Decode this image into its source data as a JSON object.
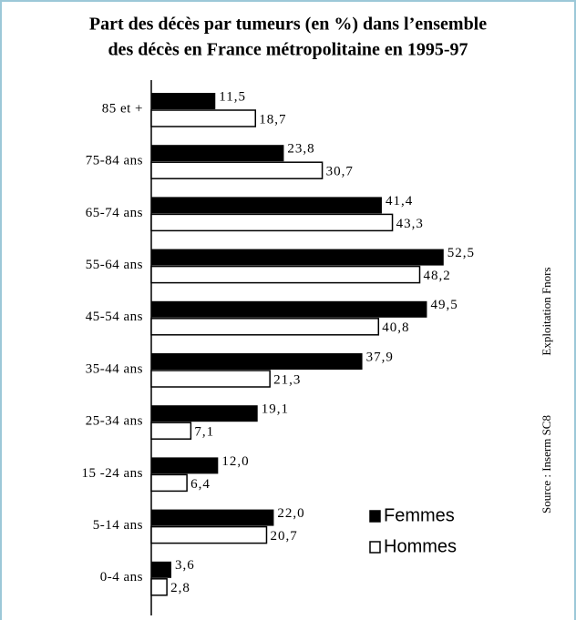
{
  "chart_data": {
    "type": "bar",
    "orientation": "horizontal",
    "title": [
      "Part des décès par tumeurs (en %) dans l’ensemble",
      "des décès en France métropolitaine en 1995-97"
    ],
    "categories": [
      "85 et +",
      "75-84 ans",
      "65-74 ans",
      "55-64 ans",
      "45-54 ans",
      "35-44 ans",
      "25-34 ans",
      "15 -24 ans",
      "5-14 ans",
      "0-4 ans"
    ],
    "series": [
      {
        "name": "Femmes",
        "color": "#000000",
        "values": [
          11.5,
          23.8,
          41.4,
          52.5,
          49.5,
          37.9,
          19.1,
          12.0,
          22.0,
          3.6
        ],
        "value_labels": [
          "11,5",
          "23,8",
          "41,4",
          "52,5",
          "49,5",
          "37,9",
          "19,1",
          "12,0",
          "22,0",
          "3,6"
        ]
      },
      {
        "name": "Hommes",
        "color": "#ffffff",
        "values": [
          18.7,
          30.7,
          43.3,
          48.2,
          40.8,
          21.3,
          7.1,
          6.4,
          20.7,
          2.8
        ],
        "value_labels": [
          "18,7",
          "30,7",
          "43,3",
          "48,2",
          "40,8",
          "21,3",
          "7,1",
          "6,4",
          "20,7",
          "2,8"
        ]
      }
    ],
    "annotations": [
      "Exploitation Fnors",
      "Source : Inserm SC8"
    ]
  }
}
